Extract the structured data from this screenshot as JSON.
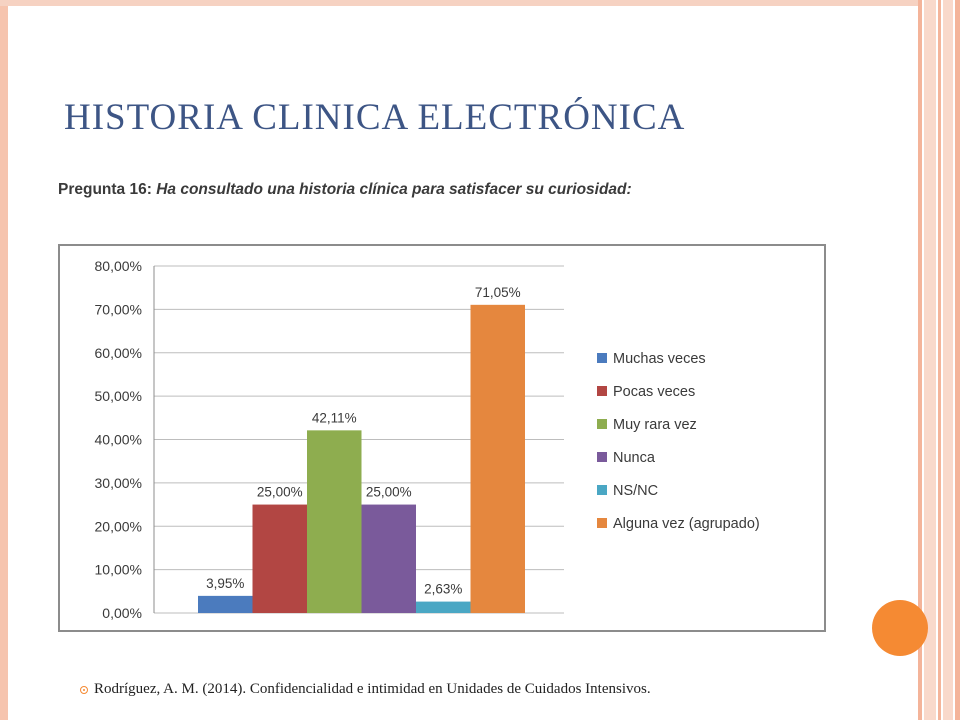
{
  "slide": {
    "title": "HISTORIA CLINICA ELECTRÓNICA",
    "question_label": "Pregunta 16:",
    "question_text": "Ha consultado una historia clínica para satisfacer su curiosidad:",
    "footer_citation": "Rodríguez, A. M. (2014). Confidencialidad e intimidad en Unidades de Cuidados Intensivos."
  },
  "colors": {
    "title": "#3d5585",
    "accent": "#f58a33"
  },
  "chart_data": {
    "type": "bar",
    "categories": [
      "Muchas veces",
      "Pocas veces",
      "Muy rara vez",
      "Nunca",
      "NS/NC",
      "Alguna vez (agrupado)"
    ],
    "values": [
      3.95,
      25.0,
      42.11,
      25.0,
      2.63,
      71.05
    ],
    "data_labels": [
      "3,95%",
      "25,00%",
      "42,11%",
      "25,00%",
      "2,63%",
      "71,05%"
    ],
    "colors": [
      "#4b7bbe",
      "#b24643",
      "#8ead4f",
      "#7a5a9b",
      "#4aa7c4",
      "#e5873e"
    ],
    "ylim": [
      0,
      80
    ],
    "y_ticks": [
      0,
      10,
      20,
      30,
      40,
      50,
      60,
      70,
      80
    ],
    "y_tick_labels": [
      "0,00%",
      "10,00%",
      "20,00%",
      "30,00%",
      "40,00%",
      "50,00%",
      "60,00%",
      "70,00%",
      "80,00%"
    ],
    "grid": true,
    "legend_position": "right",
    "title": "",
    "xlabel": "",
    "ylabel": ""
  }
}
